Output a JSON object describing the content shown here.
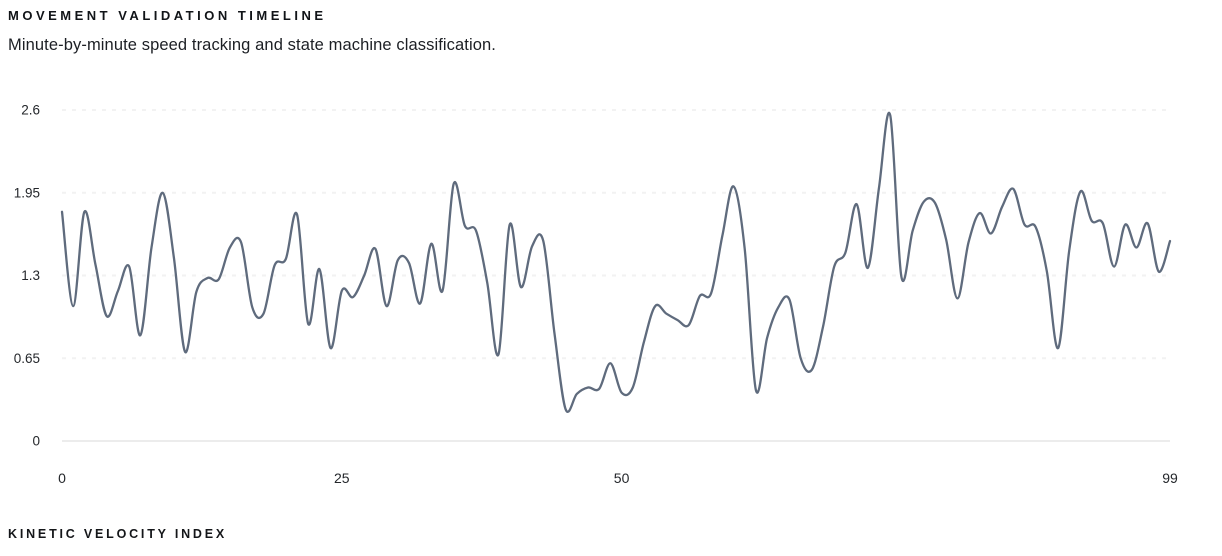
{
  "header": {
    "title": "MOVEMENT VALIDATION TIMELINE",
    "subtitle": "Minute-by-minute speed tracking and state machine classification."
  },
  "footer": {
    "label": "KINETIC VELOCITY INDEX"
  },
  "colors": {
    "line": "#5f6b7d",
    "gridline": "#f2f2f2",
    "axis_line": "#ececec",
    "tick_text": "#24272b",
    "background": "#ffffff"
  },
  "chart_data": {
    "type": "line",
    "title": "MOVEMENT VALIDATION TIMELINE",
    "subtitle": "Minute-by-minute speed tracking and state machine classification.",
    "xlabel": "KINETIC VELOCITY INDEX",
    "ylabel": "",
    "xlim": [
      0,
      99
    ],
    "ylim": [
      0,
      2.6
    ],
    "x_ticks": [
      0,
      25,
      50,
      99
    ],
    "y_ticks": [
      0,
      0.65,
      1.3,
      1.95,
      2.6
    ],
    "y_tick_labels": [
      "0",
      "0.65",
      "1.3",
      "1.95",
      "2.6"
    ],
    "grid": "horizontal-dashed",
    "legend": "none",
    "curve": "smooth-spline",
    "x": [
      0,
      1,
      2,
      3,
      4,
      5,
      6,
      7,
      8,
      9,
      10,
      11,
      12,
      13,
      14,
      15,
      16,
      17,
      18,
      19,
      20,
      21,
      22,
      23,
      24,
      25,
      26,
      27,
      28,
      29,
      30,
      31,
      32,
      33,
      34,
      35,
      36,
      37,
      38,
      39,
      40,
      41,
      42,
      43,
      44,
      45,
      46,
      47,
      48,
      49,
      50,
      51,
      52,
      53,
      54,
      55,
      56,
      57,
      58,
      59,
      60,
      61,
      62,
      63,
      64,
      65,
      66,
      67,
      68,
      69,
      70,
      71,
      72,
      73,
      74,
      75,
      76,
      77,
      78,
      79,
      80,
      81,
      82,
      83,
      84,
      85,
      86,
      87,
      88,
      89,
      90,
      91,
      92,
      93,
      94,
      95,
      96,
      97,
      98,
      99
    ],
    "values": [
      1.8,
      1.06,
      1.8,
      1.38,
      0.98,
      1.18,
      1.37,
      0.83,
      1.52,
      1.95,
      1.44,
      0.7,
      1.17,
      1.28,
      1.27,
      1.52,
      1.56,
      1.05,
      1.0,
      1.38,
      1.43,
      1.78,
      0.92,
      1.35,
      0.73,
      1.18,
      1.13,
      1.3,
      1.51,
      1.06,
      1.42,
      1.4,
      1.08,
      1.55,
      1.18,
      2.02,
      1.69,
      1.65,
      1.24,
      0.68,
      1.7,
      1.21,
      1.53,
      1.57,
      0.85,
      0.25,
      0.37,
      0.42,
      0.41,
      0.61,
      0.38,
      0.42,
      0.78,
      1.06,
      1.0,
      0.95,
      0.91,
      1.14,
      1.16,
      1.61,
      2.0,
      1.51,
      0.4,
      0.81,
      1.05,
      1.11,
      0.65,
      0.56,
      0.9,
      1.37,
      1.48,
      1.86,
      1.36,
      1.99,
      2.56,
      1.29,
      1.65,
      1.88,
      1.87,
      1.58,
      1.12,
      1.56,
      1.79,
      1.63,
      1.84,
      1.98,
      1.7,
      1.68,
      1.33,
      0.73,
      1.5,
      1.96,
      1.73,
      1.71,
      1.37,
      1.7,
      1.52,
      1.71,
      1.33,
      1.57
    ]
  }
}
